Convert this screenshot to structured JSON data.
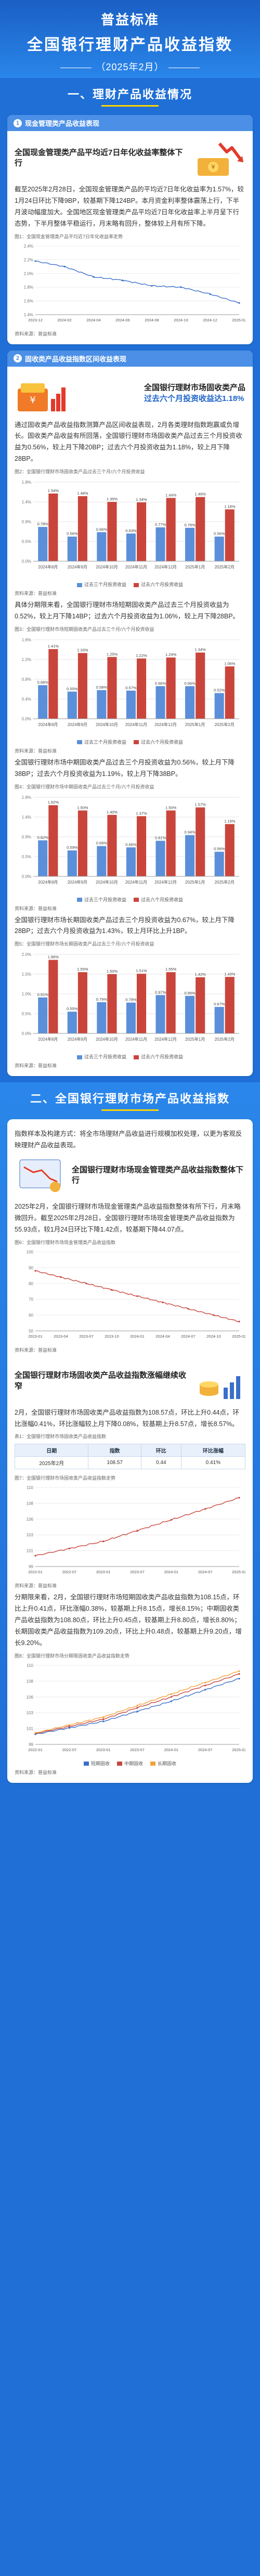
{
  "hero": {
    "brand": "普益标准",
    "title": "全国银行理财产品收益指数",
    "period": "（2025年2月）"
  },
  "sec1": {
    "title": "一、理财产品收益情况",
    "card1": {
      "num": "1",
      "title": "现金管理类产品收益表现",
      "headline": "全国现金管理类产品平均近7日年化收益率整体下行",
      "para": "截至2025年2月28日，全国现金管理类产品的平均近7日年化收益率为1.57%，较1月24日环比下降9BP，较基期下降124BP。本月资金利率整体震荡上行，下半月波动幅度加大。全国地区现金管理类产品平均近7日年化收益率上半月呈下行态势，下半月整体平稳运行，月末略有回升，整体较上月有所下降。",
      "chart_title": "图1：全国现金管理类产品平均近7日年化收益率走势",
      "source": "资料来源：普益标准"
    },
    "card2": {
      "num": "2",
      "title": "固收类产品收益指数区间收益表现",
      "headline_a": "全国银行理财市场固收类产品",
      "headline_b": "过去六个月投资收益达1.18%",
      "para": "通过固收类产品收益指数测算产品区间收益表现，2月各类理财指数跑赢或负增长。固收类产品收益有所回落，全国银行理财市场固收类产品过去三个月投资收益为0.56%，较上月下降20BP；过去六个月投资收益为1.18%，较上月下降28BP。",
      "chart1_title": "图2：全国银行理财市场固收类产品过去三个月/六个月投资收益",
      "para2": "具体分期限来看，全国银行理财市场短期固收类产品过去三个月投资收益为0.52%，较上月下降14BP；过去六个月投资收益为1.06%，较上月下降28BP。",
      "chart2_title": "图3：全国银行理财市场短期固收类产品过去三个月/六个月投资收益",
      "para3": "全国银行理财市场中期固收类产品过去三个月投资收益为0.56%，较上月下降38BP；过去六个月投资收益为1.19%，较上月下降38BP。",
      "chart3_title": "图4：全国银行理财市场中期固收类产品过去三个月/六个月投资收益",
      "para4": "全国银行理财市场长期固收类产品过去三个月投资收益为0.67%，较上月下降28BP；过去六个月投资收益为1.43%，较上月环比上升1BP。",
      "chart4_title": "图5：全国银行理财市场长期固收类产品过去三个月/六个月投资收益",
      "legend_3m": "过去三个月投资收益",
      "legend_6m": "过去六个月投资收益",
      "source": "资料来源：普益标准"
    }
  },
  "sec2": {
    "title": "二、全国银行理财市场产品收益指数",
    "intro": "指数样本及构建方式：将全市场理财产品收益进行规模加权处理，以更为客观反映理财产品收益表现。",
    "card1": {
      "headline": "全国银行理财市场现金管理类产品收益指数整体下行",
      "para": "2025年2月，全国银行理财市场现金管理类产品收益指数整体有所下行，月末略微回升。截至2025年2月28日，全国银行理财市场现金管理类产品收益指数为55.93点，较1月24日环比下降1.42点，较基期下降44.07点。",
      "chart_title": "图6：全国银行理财市场现金管理类产品收益指数",
      "source": "资料来源：普益标准"
    },
    "card2": {
      "headline": "全国银行理财市场固收类产品收益指数涨幅继续收窄",
      "para": "2月，全国银行理财市场固收类产品收益指数为108.57点，环比上升0.44点，环比涨幅0.41%，环比涨幅较上月下降0.08%，较基期上升8.57点，增长8.57%。",
      "table_title": "表1：全国银行理财市场固收类产品收益指数",
      "table_headers": [
        "日期",
        "指数",
        "环比",
        "环比涨幅"
      ],
      "table_rows": [
        [
          "2025年2月",
          "108.57",
          "0.44",
          "0.41%"
        ]
      ],
      "chart_title": "图7：全国银行理财市场固收类产品收益指数走势",
      "para2": "分期限来看，2月，全国银行理财市场短期固收类产品收益指数为108.15点，环比上升0.41点，环比涨幅0.38%，较基期上升8.15点，增长8.15%；中期固收类产品收益指数为108.80点，环比上升0.45点，较基期上升8.80点，增长8.80%；长期固收类产品收益指数为109.20点，环比上升0.48点，较基期上升9.20点，增长9.20%。",
      "chart2_title": "图8：全国银行理财市场分期限固收类产品收益指数走势",
      "legend_short": "短期固收",
      "legend_mid": "中期固收",
      "legend_long": "长期固收",
      "source": "资料来源：普益标准"
    }
  },
  "colors": {
    "primary": "#1f6fd6",
    "bar_3m": "#5b8fd9",
    "bar_6m": "#c9453b",
    "line_blue": "#3a6fc8",
    "line_red": "#c9453b",
    "accent": "#ffd400"
  },
  "chart_data": [
    {
      "type": "line",
      "title": "图1：全国现金管理类产品平均近7日年化收益率走势",
      "x": [
        "2023-12",
        "2024-02",
        "2024-04",
        "2024-06",
        "2024-08",
        "2024-10",
        "2024-12",
        "2025-02"
      ],
      "series": [
        {
          "name": "近7日年化收益率",
          "values": [
            2.18,
            2.1,
            1.95,
            1.9,
            1.82,
            1.8,
            1.7,
            1.57
          ]
        }
      ],
      "ylim": [
        1.4,
        2.4
      ]
    },
    {
      "type": "bar",
      "title": "图2：全国银行理财市场固收类产品过去三个月/六个月投资收益",
      "categories": [
        "2024年8月",
        "2024年9月",
        "2024年10月",
        "2024年11月",
        "2024年12月",
        "2025年1月",
        "2025年2月"
      ],
      "series": [
        {
          "name": "过去三个月投资收益",
          "values": [
            0.78,
            0.56,
            0.66,
            0.63,
            0.77,
            0.76,
            0.56
          ]
        },
        {
          "name": "过去六个月投资收益",
          "values": [
            1.54,
            1.48,
            1.35,
            1.34,
            1.44,
            1.46,
            1.18
          ]
        }
      ],
      "ylim": [
        0,
        1.8
      ]
    },
    {
      "type": "bar",
      "title": "图3：全国银行理财市场短期固收类产品过去三个月/六个月投资收益",
      "categories": [
        "2024年8月",
        "2024年9月",
        "2024年10月",
        "2024年11月",
        "2024年12月",
        "2025年1月",
        "2025年2月"
      ],
      "series": [
        {
          "name": "过去三个月投资收益",
          "values": [
            0.68,
            0.55,
            0.58,
            0.57,
            0.66,
            0.66,
            0.52
          ]
        },
        {
          "name": "过去六个月投资收益",
          "values": [
            1.41,
            1.33,
            1.25,
            1.22,
            1.24,
            1.34,
            1.06
          ]
        }
      ],
      "ylim": [
        0,
        1.6
      ]
    },
    {
      "type": "bar",
      "title": "图4：全国银行理财市场中期固收类产品过去三个月/六个月投资收益",
      "categories": [
        "2024年8月",
        "2024年9月",
        "2024年10月",
        "2024年11月",
        "2024年12月",
        "2025年1月",
        "2025年2月"
      ],
      "series": [
        {
          "name": "过去三个月投资收益",
          "values": [
            0.82,
            0.59,
            0.69,
            0.66,
            0.81,
            0.94,
            0.56
          ]
        },
        {
          "name": "过去六个月投资收益",
          "values": [
            1.62,
            1.5,
            1.4,
            1.37,
            1.5,
            1.57,
            1.19
          ]
        }
      ],
      "ylim": [
        0,
        1.8
      ]
    },
    {
      "type": "bar",
      "title": "图5：全国银行理财市场长期固收类产品过去三个月/六个月投资收益",
      "categories": [
        "2024年8月",
        "2024年9月",
        "2024年10月",
        "2024年11月",
        "2024年12月",
        "2025年1月",
        "2025年2月"
      ],
      "series": [
        {
          "name": "过去三个月投资收益",
          "values": [
            0.91,
            0.55,
            0.79,
            0.78,
            0.97,
            0.95,
            0.67
          ]
        },
        {
          "name": "过去六个月投资收益",
          "values": [
            1.86,
            1.55,
            1.5,
            1.51,
            1.55,
            1.42,
            1.43
          ]
        }
      ],
      "ylim": [
        0,
        2.0
      ]
    },
    {
      "type": "line",
      "title": "图6：全国银行理财市场现金管理类产品收益指数",
      "x": [
        "2023-01",
        "2023-04",
        "2023-07",
        "2023-10",
        "2024-01",
        "2024-04",
        "2024-07",
        "2024-10",
        "2025-02"
      ],
      "series": [
        {
          "name": "现金管理类产品收益指数",
          "values": [
            88,
            84,
            80,
            76,
            72,
            68,
            64,
            60,
            55.93
          ]
        }
      ],
      "ylim": [
        50,
        100
      ]
    },
    {
      "type": "line",
      "title": "图7：全国银行理财市场固收类产品收益指数走势",
      "x": [
        "2022-01",
        "2022-07",
        "2023-01",
        "2023-07",
        "2024-01",
        "2024-07",
        "2025-02"
      ],
      "series": [
        {
          "name": "固收类产品收益指数",
          "values": [
            100.5,
            101.5,
            102.5,
            104,
            105.5,
            107,
            108.57
          ]
        }
      ],
      "ylim": [
        99,
        110
      ]
    },
    {
      "type": "line",
      "title": "图8：全国银行理财市场分期限固收类产品收益指数走势",
      "x": [
        "2022-01",
        "2022-07",
        "2023-01",
        "2023-07",
        "2024-01",
        "2024-07",
        "2025-02"
      ],
      "series": [
        {
          "name": "短期固收",
          "values": [
            100.4,
            101.3,
            102.2,
            103.6,
            105.0,
            106.6,
            108.15
          ]
        },
        {
          "name": "中期固收",
          "values": [
            100.5,
            101.5,
            102.5,
            104.1,
            105.6,
            107.2,
            108.8
          ]
        },
        {
          "name": "长期固收",
          "values": [
            100.6,
            101.7,
            102.8,
            104.4,
            106.0,
            107.6,
            109.2
          ]
        }
      ],
      "ylim": [
        99,
        110
      ]
    }
  ]
}
